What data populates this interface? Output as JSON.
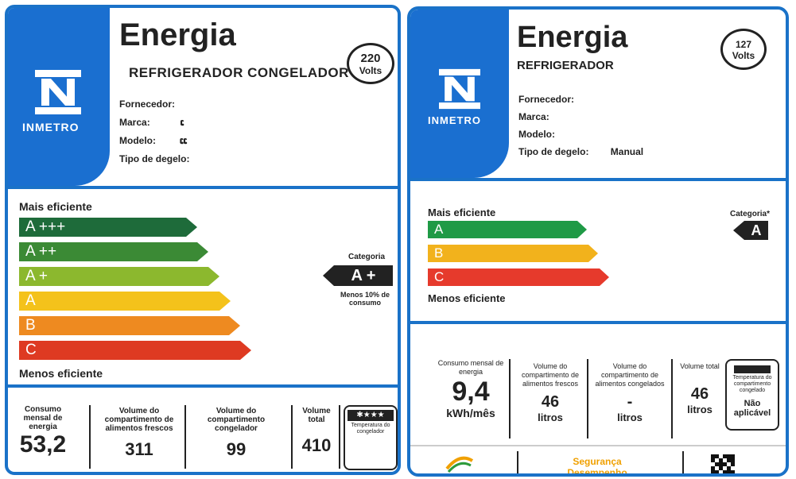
{
  "left": {
    "title": "Energia",
    "subtitle": "REFRIGERADOR CONGELADOR",
    "voltage": {
      "value": "220",
      "unit": "Volts"
    },
    "inmetro": "INMETRO",
    "fields": [
      {
        "label": "Fornecedor:",
        "value": ""
      },
      {
        "label": "Marca:",
        "value": "ເ"
      },
      {
        "label": "Modelo:",
        "value": "ແ"
      },
      {
        "label": "Tipo de degelo:",
        "value": ""
      }
    ],
    "most_efficient": "Mais eficiente",
    "least_efficient": "Menos eficiente",
    "bars": [
      {
        "label": "A +++",
        "color": "#1e6b3a"
      },
      {
        "label": "A ++",
        "color": "#3b8a35"
      },
      {
        "label": "A +",
        "color": "#8cb82e"
      },
      {
        "label": "A",
        "color": "#f4c21b"
      },
      {
        "label": "B",
        "color": "#ee8a20"
      },
      {
        "label": "C",
        "color": "#de3a22"
      }
    ],
    "category": {
      "label": "Categoria",
      "value": "A +",
      "note": "Menos 10% de consumo"
    },
    "columns": [
      {
        "header": "Consumo mensal de energia",
        "value": "53,2"
      },
      {
        "header": "Volume do compartimento de alimentos frescos",
        "value": "311"
      },
      {
        "header": "Volume do compartimento congelador",
        "value": "99"
      },
      {
        "header": "Volume total",
        "value": "410"
      }
    ],
    "temperature": {
      "label": "Temperatura do congelador"
    }
  },
  "right": {
    "title": "Energia",
    "subtitle": "REFRIGERADOR",
    "voltage": {
      "value": "127",
      "unit": "Volts"
    },
    "inmetro": "INMETRO",
    "fields": [
      {
        "label": "Fornecedor:",
        "value": ""
      },
      {
        "label": "Marca:",
        "value": ""
      },
      {
        "label": "Modelo:",
        "value": ""
      },
      {
        "label": "Tipo de degelo:",
        "value": "Manual"
      }
    ],
    "most_efficient": "Mais eficiente",
    "least_efficient": "Menos eficiente",
    "bars": [
      {
        "label": "A",
        "color": "#1f9a46"
      },
      {
        "label": "B",
        "color": "#f2b21c"
      },
      {
        "label": "C",
        "color": "#e63a2c"
      }
    ],
    "category": {
      "label": "Categoria*",
      "value": "A"
    },
    "columns": [
      {
        "header": "Consumo mensal de energia",
        "value": "9,4",
        "unit": "kWh/mês"
      },
      {
        "header": "Volume do compartimento de alimentos frescos",
        "value": "46",
        "unit": "litros"
      },
      {
        "header": "Volume do compartimento de alimentos congelados",
        "value": "-",
        "unit": "litros"
      },
      {
        "header": "Volume total",
        "value": "46",
        "unit": "litros"
      }
    ],
    "temperature": {
      "label": "Temperatura do compartimento congelado",
      "value": "Não aplicável"
    },
    "footer": {
      "seal": "Segurança Desempenho"
    }
  }
}
